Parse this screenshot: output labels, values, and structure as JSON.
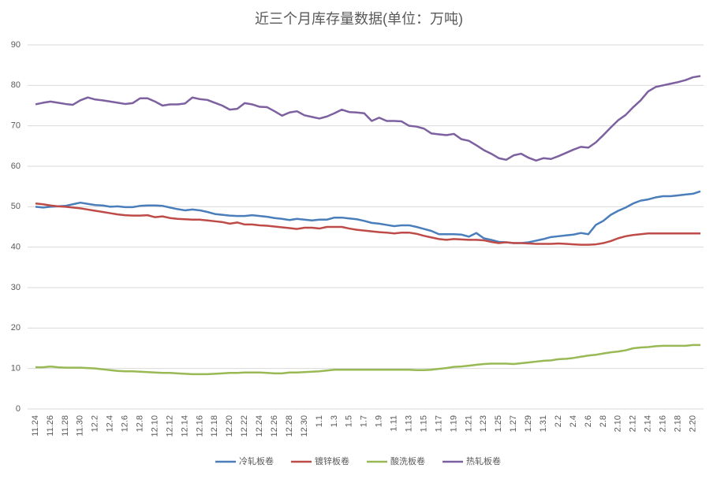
{
  "chart_data": {
    "type": "line",
    "title": "近三个月库存量数据(单位：万吨)",
    "categories": [
      "11.24",
      null,
      "11.26",
      null,
      "11.28",
      null,
      "11.30",
      null,
      "12.2",
      null,
      "12.4",
      null,
      "12.6",
      null,
      "12.8",
      null,
      "12.10",
      null,
      "12.12",
      null,
      "12.14",
      null,
      "12.16",
      null,
      "12.18",
      null,
      "12.20",
      null,
      "12.22",
      null,
      "12.24",
      null,
      "12.26",
      null,
      "12.28",
      null,
      "12.30",
      null,
      "1.1",
      null,
      "1.3",
      null,
      "1.5",
      null,
      "1.7",
      null,
      "1.9",
      null,
      "1.11",
      null,
      "1.13",
      null,
      "1.15",
      null,
      "1.17",
      null,
      "1.19",
      null,
      "1.21",
      null,
      "1.23",
      null,
      "1.25",
      null,
      "1.27",
      null,
      "1.29",
      null,
      "1.31",
      null,
      "2.2",
      null,
      "2.4",
      null,
      "2.6",
      null,
      "2.8",
      null,
      "2.10",
      null,
      "2.12",
      null,
      "2.14",
      null,
      "2.16",
      null,
      "2.18",
      null,
      "2.20",
      null
    ],
    "series": [
      {
        "name": "冷轧板卷",
        "color": "#4a7ebb",
        "values": [
          50,
          49.8,
          50,
          50.1,
          50.2,
          50.6,
          51,
          50.7,
          50.4,
          50.3,
          50,
          50.1,
          49.9,
          49.9,
          50.2,
          50.3,
          50.3,
          50.2,
          49.8,
          49.4,
          49.1,
          49.3,
          49.1,
          48.7,
          48.2,
          48,
          47.8,
          47.7,
          47.7,
          47.9,
          47.7,
          47.5,
          47.2,
          47,
          46.7,
          47,
          46.8,
          46.6,
          46.8,
          46.8,
          47.3,
          47.3,
          47.1,
          46.9,
          46.5,
          46,
          45.8,
          45.5,
          45.2,
          45.4,
          45.4,
          45,
          44.5,
          44,
          43.2,
          43.2,
          43.2,
          43.1,
          42.6,
          43.5,
          42.2,
          41.8,
          41.3,
          41.2,
          41,
          41,
          41.2,
          41.6,
          42,
          42.5,
          42.7,
          42.9,
          43.1,
          43.5,
          43.2,
          45.5,
          46.5,
          48,
          49,
          49.8,
          50.8,
          51.5,
          51.8,
          52.3,
          52.6,
          52.6,
          52.8,
          53,
          53.2,
          53.8
        ]
      },
      {
        "name": "镀锌板卷",
        "color": "#be4b48",
        "values": [
          50.8,
          50.6,
          50.3,
          50.1,
          50,
          49.8,
          49.6,
          49.3,
          49,
          48.7,
          48.4,
          48.1,
          47.9,
          47.8,
          47.8,
          47.9,
          47.4,
          47.6,
          47.2,
          47,
          46.9,
          46.8,
          46.8,
          46.6,
          46.4,
          46.2,
          45.8,
          46.1,
          45.6,
          45.6,
          45.4,
          45.3,
          45.1,
          44.9,
          44.7,
          44.5,
          44.8,
          44.8,
          44.6,
          45,
          45,
          45,
          44.6,
          44.3,
          44.1,
          43.9,
          43.7,
          43.6,
          43.4,
          43.6,
          43.6,
          43.3,
          42.8,
          42.4,
          42,
          41.8,
          42,
          41.9,
          41.8,
          41.8,
          41.7,
          41.3,
          41,
          41.2,
          41,
          41,
          40.9,
          40.8,
          40.8,
          40.8,
          40.9,
          40.8,
          40.7,
          40.6,
          40.6,
          40.7,
          41,
          41.5,
          42.2,
          42.7,
          43,
          43.2,
          43.4,
          43.4,
          43.4,
          43.4,
          43.4,
          43.4,
          43.4,
          43.4
        ]
      },
      {
        "name": "酸洗板卷",
        "color": "#98b954",
        "values": [
          10.3,
          10.3,
          10.5,
          10.3,
          10.2,
          10.2,
          10.2,
          10.1,
          10,
          9.8,
          9.6,
          9.4,
          9.3,
          9.3,
          9.2,
          9.1,
          9,
          8.9,
          8.9,
          8.8,
          8.7,
          8.6,
          8.6,
          8.6,
          8.7,
          8.8,
          8.9,
          8.9,
          9,
          9,
          9,
          8.9,
          8.8,
          8.8,
          9,
          9,
          9.1,
          9.2,
          9.3,
          9.5,
          9.7,
          9.7,
          9.7,
          9.7,
          9.7,
          9.7,
          9.7,
          9.7,
          9.7,
          9.7,
          9.7,
          9.6,
          9.6,
          9.7,
          9.9,
          10.1,
          10.4,
          10.5,
          10.7,
          10.9,
          11.1,
          11.2,
          11.2,
          11.2,
          11.1,
          11.3,
          11.5,
          11.7,
          11.9,
          12,
          12.3,
          12.4,
          12.6,
          12.9,
          13.2,
          13.4,
          13.7,
          14,
          14.2,
          14.5,
          15,
          15.2,
          15.3,
          15.5,
          15.6,
          15.6,
          15.6,
          15.6,
          15.8,
          15.8
        ]
      },
      {
        "name": "热轧板卷",
        "color": "#7d60a0",
        "values": [
          75.3,
          75.7,
          76,
          75.7,
          75.4,
          75.2,
          76.3,
          77,
          76.5,
          76.3,
          76,
          75.7,
          75.4,
          75.6,
          76.8,
          76.8,
          76,
          75,
          75.3,
          75.3,
          75.5,
          77,
          76.6,
          76.4,
          75.7,
          75,
          74,
          74.2,
          75.6,
          75.3,
          74.7,
          74.6,
          73.6,
          72.5,
          73.3,
          73.6,
          72.6,
          72.2,
          71.8,
          72.3,
          73.1,
          74,
          73.4,
          73.3,
          73.1,
          71.2,
          72,
          71.2,
          71.2,
          71.1,
          70,
          69.8,
          69.3,
          68.1,
          67.9,
          67.7,
          68,
          66.7,
          66.3,
          65.2,
          64,
          63.1,
          62,
          61.6,
          62.7,
          63.1,
          62.1,
          61.4,
          62,
          61.8,
          62.5,
          63.3,
          64.1,
          64.8,
          64.6,
          65.9,
          67.7,
          69.6,
          71.4,
          72.7,
          74.6,
          76.3,
          78.5,
          79.6,
          80,
          80.4,
          80.8,
          81.3,
          82,
          82.3
        ]
      }
    ],
    "ylim": [
      0,
      90
    ],
    "yticks": [
      0,
      10,
      20,
      30,
      40,
      50,
      60,
      70,
      80,
      90
    ],
    "grid": true,
    "legend": "bottom"
  }
}
